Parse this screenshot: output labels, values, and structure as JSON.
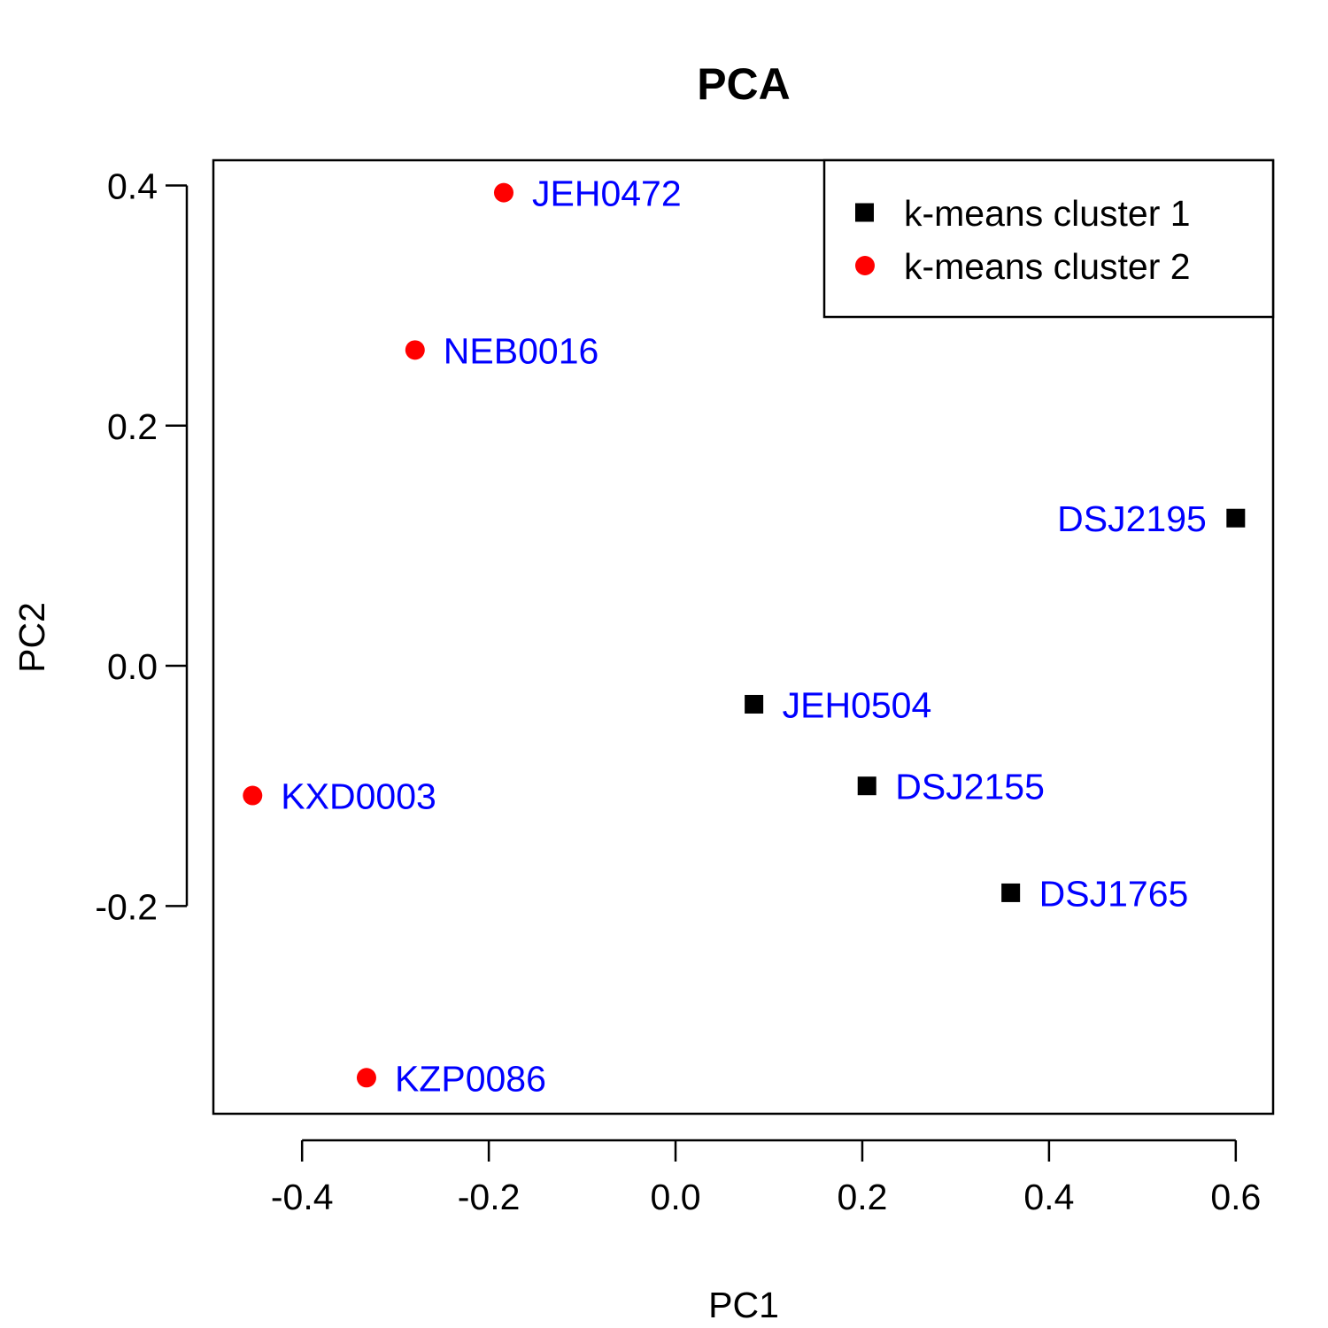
{
  "chart_data": {
    "type": "scatter",
    "title": "PCA",
    "xlabel": "PC1",
    "ylabel": "PC2",
    "xlim": [
      -0.495,
      0.64
    ],
    "ylim": [
      -0.373,
      0.421
    ],
    "xticks": [
      -0.4,
      -0.2,
      0.0,
      0.2,
      0.4,
      0.6
    ],
    "xtick_labels": [
      "-0.4",
      "-0.2",
      "0.0",
      "0.2",
      "0.4",
      "0.6"
    ],
    "yticks": [
      -0.2,
      0.0,
      0.2,
      0.4
    ],
    "ytick_labels": [
      "-0.2",
      "0.0",
      "0.2",
      "0.4"
    ],
    "label_color": "#0000FF",
    "legend_position": "top-right",
    "series": [
      {
        "name": "k-means cluster 1",
        "marker": "square",
        "color": "#000000",
        "points": [
          {
            "label": "DSJ2195",
            "x": 0.6,
            "y": 0.123,
            "label_side": "left"
          },
          {
            "label": "JEH0504",
            "x": 0.084,
            "y": -0.032,
            "label_side": "right"
          },
          {
            "label": "DSJ2155",
            "x": 0.205,
            "y": -0.1,
            "label_side": "right"
          },
          {
            "label": "DSJ1765",
            "x": 0.359,
            "y": -0.189,
            "label_side": "right"
          }
        ]
      },
      {
        "name": "k-means cluster 2",
        "marker": "circle",
        "color": "#FF0000",
        "points": [
          {
            "label": "JEH0472",
            "x": -0.184,
            "y": 0.394,
            "label_side": "right"
          },
          {
            "label": "NEB0016",
            "x": -0.279,
            "y": 0.263,
            "label_side": "right"
          },
          {
            "label": "KXD0003",
            "x": -0.453,
            "y": -0.108,
            "label_side": "right"
          },
          {
            "label": "KZP0086",
            "x": -0.331,
            "y": -0.343,
            "label_side": "right"
          }
        ]
      }
    ]
  }
}
